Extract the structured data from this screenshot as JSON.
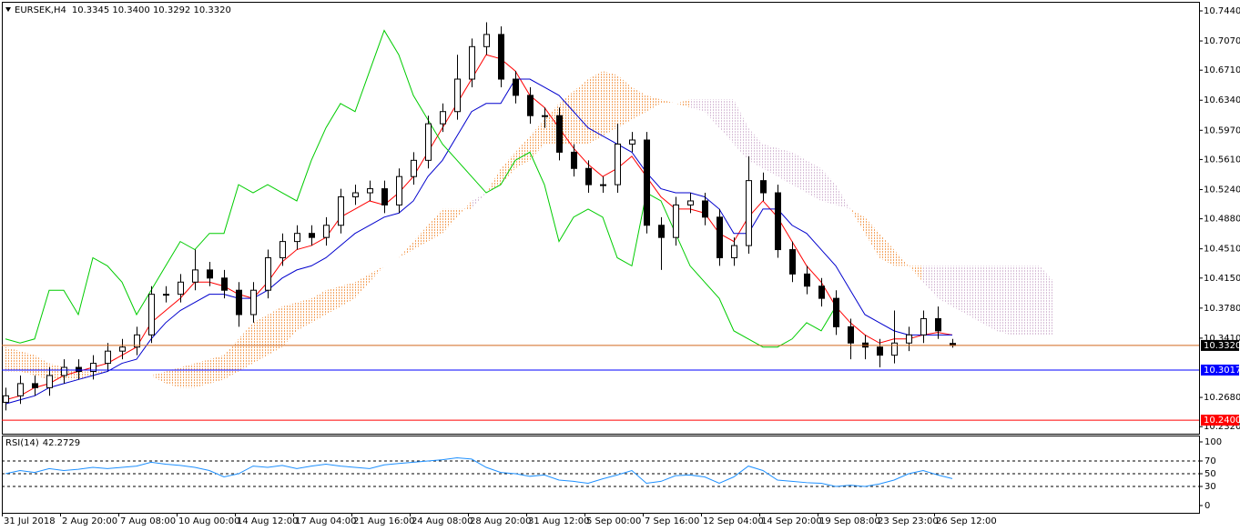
{
  "chart_data": {
    "type": "candlestick",
    "symbol": "EURSEK,H4",
    "ohlc_text": "10.3345 10.3400 10.3292 10.3320",
    "ylim": [
      10.2233,
      10.7552
    ],
    "yticks": [
      {
        "value": 10.744,
        "label": "10.7440"
      },
      {
        "value": 10.707,
        "label": "10.7070"
      },
      {
        "value": 10.671,
        "label": "10.6710"
      },
      {
        "value": 10.634,
        "label": "10.6340"
      },
      {
        "value": 10.597,
        "label": "10.5970"
      },
      {
        "value": 10.561,
        "label": "10.5610"
      },
      {
        "value": 10.524,
        "label": "10.5240"
      },
      {
        "value": 10.488,
        "label": "10.4880"
      },
      {
        "value": 10.451,
        "label": "10.4510"
      },
      {
        "value": 10.415,
        "label": "10.4150"
      },
      {
        "value": 10.378,
        "label": "10.3780"
      },
      {
        "value": 10.341,
        "label": "10.3410"
      },
      {
        "value": 10.268,
        "label": "10.2680"
      },
      {
        "value": 10.232,
        "label": "10.2320"
      }
    ],
    "time_labels": [
      "31 Jul 2018",
      "2 Aug 20:00",
      "7 Aug 08:00",
      "10 Aug 00:00",
      "14 Aug 12:00",
      "17 Aug 04:00",
      "21 Aug 16:00",
      "24 Aug 08:00",
      "28 Aug 20:00",
      "31 Aug 12:00",
      "5 Sep 00:00",
      "7 Sep 16:00",
      "12 Sep 04:00",
      "14 Sep 20:00",
      "19 Sep 08:00",
      "23 Sep 23:00",
      "26 Sep 12:00"
    ],
    "bull_color": "#ffffff",
    "bear_color": "#000000",
    "candles": [
      [
        10.262,
        10.28,
        10.252,
        10.27
      ],
      [
        10.27,
        10.295,
        10.26,
        10.285
      ],
      [
        10.285,
        10.295,
        10.27,
        10.28
      ],
      [
        10.28,
        10.305,
        10.27,
        10.295
      ],
      [
        10.295,
        10.315,
        10.285,
        10.305
      ],
      [
        10.305,
        10.315,
        10.29,
        10.3
      ],
      [
        10.3,
        10.32,
        10.29,
        10.31
      ],
      [
        10.31,
        10.335,
        10.3,
        10.325
      ],
      [
        10.325,
        10.34,
        10.315,
        10.33
      ],
      [
        10.33,
        10.355,
        10.32,
        10.345
      ],
      [
        10.345,
        10.405,
        10.335,
        10.395
      ],
      [
        10.395,
        10.405,
        10.385,
        10.395
      ],
      [
        10.395,
        10.42,
        10.385,
        10.41
      ],
      [
        10.41,
        10.45,
        10.4,
        10.425
      ],
      [
        10.425,
        10.435,
        10.405,
        10.415
      ],
      [
        10.415,
        10.425,
        10.39,
        10.4
      ],
      [
        10.4,
        10.41,
        10.355,
        10.37
      ],
      [
        10.37,
        10.41,
        10.36,
        10.4
      ],
      [
        10.4,
        10.45,
        10.39,
        10.44
      ],
      [
        10.44,
        10.47,
        10.43,
        10.46
      ],
      [
        10.46,
        10.48,
        10.45,
        10.47
      ],
      [
        10.47,
        10.48,
        10.455,
        10.465
      ],
      [
        10.465,
        10.49,
        10.455,
        10.48
      ],
      [
        10.48,
        10.525,
        10.47,
        10.515
      ],
      [
        10.515,
        10.53,
        10.505,
        10.52
      ],
      [
        10.52,
        10.535,
        10.51,
        10.525
      ],
      [
        10.525,
        10.535,
        10.495,
        10.505
      ],
      [
        10.505,
        10.55,
        10.495,
        10.54
      ],
      [
        10.54,
        10.57,
        10.53,
        10.56
      ],
      [
        10.56,
        10.615,
        10.55,
        10.605
      ],
      [
        10.605,
        10.63,
        10.595,
        10.62
      ],
      [
        10.62,
        10.69,
        10.61,
        10.66
      ],
      [
        10.66,
        10.71,
        10.65,
        10.7
      ],
      [
        10.7,
        10.73,
        10.69,
        10.715
      ],
      [
        10.715,
        10.725,
        10.65,
        10.66
      ],
      [
        10.66,
        10.67,
        10.63,
        10.64
      ],
      [
        10.64,
        10.65,
        10.605,
        10.615
      ],
      [
        10.615,
        10.625,
        10.6,
        10.615
      ],
      [
        10.615,
        10.625,
        10.56,
        10.57
      ],
      [
        10.57,
        10.58,
        10.54,
        10.55
      ],
      [
        10.55,
        10.56,
        10.52,
        10.53
      ],
      [
        10.53,
        10.54,
        10.52,
        10.53
      ],
      [
        10.53,
        10.605,
        10.52,
        10.58
      ],
      [
        10.58,
        10.595,
        10.57,
        10.585
      ],
      [
        10.585,
        10.595,
        10.47,
        10.48
      ],
      [
        10.48,
        10.49,
        10.425,
        10.465
      ],
      [
        10.465,
        10.515,
        10.455,
        10.505
      ],
      [
        10.505,
        10.52,
        10.495,
        10.51
      ],
      [
        10.51,
        10.52,
        10.48,
        10.49
      ],
      [
        10.49,
        10.5,
        10.43,
        10.44
      ],
      [
        10.44,
        10.465,
        10.43,
        10.455
      ],
      [
        10.455,
        10.565,
        10.445,
        10.535
      ],
      [
        10.535,
        10.545,
        10.51,
        10.52
      ],
      [
        10.52,
        10.53,
        10.44,
        10.45
      ],
      [
        10.45,
        10.46,
        10.41,
        10.42
      ],
      [
        10.42,
        10.43,
        10.395,
        10.405
      ],
      [
        10.405,
        10.415,
        10.38,
        10.39
      ],
      [
        10.39,
        10.4,
        10.345,
        10.355
      ],
      [
        10.355,
        10.365,
        10.315,
        10.335
      ],
      [
        10.335,
        10.345,
        10.315,
        10.33
      ],
      [
        10.33,
        10.34,
        10.305,
        10.32
      ],
      [
        10.32,
        10.375,
        10.31,
        10.335
      ],
      [
        10.335,
        10.355,
        10.325,
        10.345
      ],
      [
        10.345,
        10.375,
        10.335,
        10.365
      ],
      [
        10.365,
        10.38,
        10.34,
        10.35
      ],
      [
        10.3345,
        10.34,
        10.3292,
        10.332
      ]
    ],
    "lines": [
      {
        "color": "#ff0000",
        "values": [
          10.265,
          10.27,
          10.28,
          10.285,
          10.295,
          10.3,
          10.305,
          10.31,
          10.32,
          10.33,
          10.36,
          10.375,
          10.39,
          10.41,
          10.41,
          10.405,
          10.395,
          10.39,
          10.41,
          10.435,
          10.45,
          10.455,
          10.465,
          10.49,
          10.5,
          10.51,
          10.505,
          10.52,
          10.54,
          10.57,
          10.6,
          10.63,
          10.66,
          10.69,
          10.685,
          10.67,
          10.64,
          10.625,
          10.6,
          10.575,
          10.555,
          10.54,
          10.55,
          10.565,
          10.54,
          10.515,
          10.5,
          10.5,
          10.495,
          10.47,
          10.46,
          10.49,
          10.51,
          10.49,
          10.46,
          10.43,
          10.41,
          10.38,
          10.36,
          10.345,
          10.335,
          10.34,
          10.34,
          10.345,
          10.348,
          10.345
        ]
      },
      {
        "color": "#0000cd",
        "values": [
          10.26,
          10.265,
          10.27,
          10.28,
          10.285,
          10.29,
          10.295,
          10.3,
          10.31,
          10.315,
          10.34,
          10.36,
          10.375,
          10.385,
          10.395,
          10.395,
          10.39,
          10.39,
          10.4,
          10.415,
          10.425,
          10.43,
          10.44,
          10.455,
          10.47,
          10.48,
          10.49,
          10.495,
          10.51,
          10.54,
          10.56,
          10.59,
          10.62,
          10.63,
          10.63,
          10.66,
          10.66,
          10.65,
          10.64,
          10.62,
          10.6,
          10.59,
          10.58,
          10.57,
          10.545,
          10.525,
          10.52,
          10.52,
          10.515,
          10.5,
          10.47,
          10.47,
          10.5,
          10.5,
          10.48,
          10.47,
          10.45,
          10.43,
          10.4,
          10.37,
          10.36,
          10.35,
          10.345,
          10.345,
          10.345,
          10.345
        ]
      },
      {
        "color": "#00cc00",
        "values": [
          10.34,
          10.335,
          10.34,
          10.4,
          10.4,
          10.37,
          10.44,
          10.43,
          10.41,
          10.37,
          10.4,
          10.43,
          10.46,
          10.45,
          10.47,
          10.47,
          10.53,
          10.52,
          10.53,
          10.52,
          10.51,
          10.56,
          10.6,
          10.63,
          10.62,
          10.67,
          10.72,
          10.69,
          10.64,
          10.61,
          10.58,
          10.56,
          10.54,
          10.52,
          10.53,
          10.56,
          10.57,
          10.53,
          10.46,
          10.49,
          10.5,
          10.49,
          10.44,
          10.43,
          10.52,
          10.51,
          10.47,
          10.43,
          10.41,
          10.39,
          10.35,
          10.34,
          10.33,
          10.33,
          10.34,
          10.36,
          10.35,
          10.38,
          null,
          null,
          null,
          null,
          null,
          null,
          null,
          null
        ]
      }
    ],
    "cloud": {
      "up_color": "#f4a460",
      "down_color": "#d8bfd8",
      "span_a": [
        10.33,
        10.325,
        10.32,
        10.31,
        10.305,
        10.3,
        10.3,
        10.3,
        10.3,
        10.3,
        10.295,
        10.3,
        10.305,
        10.31,
        10.315,
        10.32,
        10.34,
        10.36,
        10.37,
        10.38,
        10.385,
        10.39,
        10.4,
        10.405,
        10.41,
        10.42,
        10.43,
        10.44,
        10.46,
        10.48,
        10.5,
        10.5,
        10.5,
        10.52,
        10.55,
        10.57,
        10.59,
        10.61,
        10.63,
        10.645,
        10.66,
        10.67,
        10.665,
        10.65,
        10.64,
        10.635,
        10.63,
        10.625,
        10.62,
        10.6,
        10.58,
        10.56,
        10.55,
        10.54,
        10.53,
        10.52,
        10.51,
        10.505,
        10.5,
        10.49,
        10.47,
        10.45,
        10.43,
        10.41,
        10.39,
        10.38,
        10.37,
        10.36,
        10.35,
        10.345,
        10.345,
        10.345,
        10.345
      ],
      "span_b": [
        10.3,
        10.3,
        10.295,
        10.29,
        10.29,
        10.29,
        10.295,
        10.3,
        10.3,
        10.3,
        10.295,
        10.285,
        10.28,
        10.28,
        10.285,
        10.29,
        10.3,
        10.31,
        10.32,
        10.33,
        10.35,
        10.36,
        10.37,
        10.38,
        10.39,
        10.41,
        10.43,
        10.44,
        10.45,
        10.46,
        10.47,
        10.49,
        10.51,
        10.52,
        10.53,
        10.55,
        10.56,
        10.58,
        10.58,
        10.58,
        10.58,
        10.59,
        10.6,
        10.61,
        10.62,
        10.63,
        10.63,
        10.635,
        10.635,
        10.635,
        10.635,
        10.6,
        10.58,
        10.575,
        10.57,
        10.56,
        10.55,
        10.53,
        10.5,
        10.47,
        10.44,
        10.43,
        10.43,
        10.43,
        10.43,
        10.43,
        10.43,
        10.43,
        10.43,
        10.43,
        10.43,
        10.43,
        10.41
      ]
    },
    "price_lines": [
      {
        "value": 10.332,
        "label": "10.3320",
        "color": "#d2691e",
        "tag_color": "#000000"
      },
      {
        "value": 10.3017,
        "label": "10.3017",
        "color": "#0000ff",
        "tag_color": "#0000ff"
      },
      {
        "value": 10.24,
        "label": "10.2400",
        "color": "#ff0000",
        "tag_color": "#ff0000"
      }
    ],
    "rsi": {
      "name": "RSI(14)",
      "value": 42.2729,
      "color": "#1e90ff",
      "ylim": [
        -11.4,
        110
      ],
      "yticks": [
        100,
        70,
        50,
        30,
        0
      ],
      "levels": [
        70,
        50,
        30
      ],
      "values": [
        50,
        55,
        52,
        58,
        55,
        57,
        60,
        58,
        60,
        62,
        68,
        65,
        63,
        60,
        55,
        45,
        50,
        62,
        60,
        63,
        58,
        62,
        65,
        62,
        60,
        58,
        64,
        66,
        68,
        70,
        72,
        75,
        73,
        60,
        52,
        50,
        46,
        48,
        40,
        38,
        35,
        42,
        48,
        55,
        35,
        38,
        47,
        48,
        45,
        35,
        45,
        62,
        55,
        40,
        38,
        36,
        35,
        30,
        32,
        30,
        34,
        40,
        50,
        55,
        48,
        42.2729
      ]
    }
  }
}
